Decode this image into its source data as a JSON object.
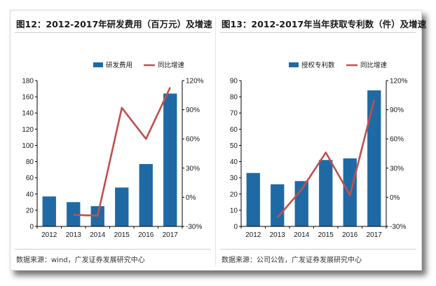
{
  "colors": {
    "bar": "#1f6aa5",
    "line": "#c0504d",
    "axis": "#000000",
    "text": "#1a1a1a"
  },
  "panels": [
    {
      "title": "图12：2012-2017年研发费用（百万元）及增速",
      "source": "数据来源：wind，广发证券发展研究中心"
    },
    {
      "title": "图13：2012-2017年当年获取专利数（件）及增速",
      "source": "数据来源：公司公告，广发证券发展研究中心"
    }
  ],
  "chart_data": [
    {
      "type": "bar",
      "title": "2012-2017年研发费用（百万元）及增速",
      "categories": [
        "2012",
        "2013",
        "2014",
        "2015",
        "2016",
        "2017"
      ],
      "series": [
        {
          "name": "研发费用",
          "kind": "bar",
          "axis": "left",
          "values": [
            37,
            30,
            25,
            48,
            77,
            164
          ]
        },
        {
          "name": "同比增速",
          "kind": "line",
          "axis": "right",
          "values": [
            null,
            -18,
            -19,
            92,
            60,
            113
          ]
        }
      ],
      "ylim": [
        0,
        180
      ],
      "yticks": [
        0,
        20,
        40,
        60,
        80,
        100,
        120,
        140,
        160,
        180
      ],
      "y2lim": [
        -30,
        120
      ],
      "y2ticks": [
        -30,
        0,
        30,
        60,
        90,
        120
      ],
      "y2format": "percent",
      "legend": "top-right"
    },
    {
      "type": "bar",
      "title": "2012-2017年当年获取专利数（件）及增速",
      "categories": [
        "2012",
        "2013",
        "2014",
        "2015",
        "2016",
        "2017"
      ],
      "series": [
        {
          "name": "授权专利数",
          "kind": "bar",
          "axis": "left",
          "values": [
            33,
            26,
            28,
            41,
            42,
            84
          ]
        },
        {
          "name": "同比增速",
          "kind": "line",
          "axis": "right",
          "values": [
            null,
            -21,
            8,
            46,
            2,
            100
          ]
        }
      ],
      "ylim": [
        0,
        90
      ],
      "yticks": [
        0,
        10,
        20,
        30,
        40,
        50,
        60,
        70,
        80,
        90
      ],
      "y2lim": [
        -30,
        120
      ],
      "y2ticks": [
        -30,
        0,
        30,
        60,
        90,
        120
      ],
      "y2format": "percent",
      "legend": "top-right"
    }
  ]
}
